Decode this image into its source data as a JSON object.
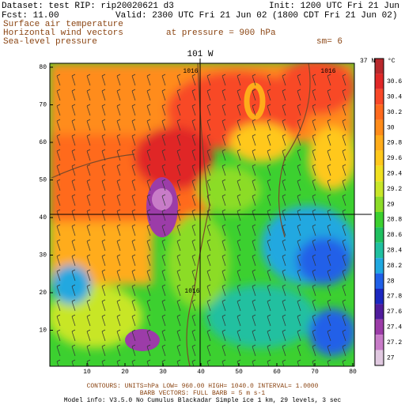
{
  "header": {
    "dataset": "Dataset: test  RIP: rip20020621 d3",
    "init": "Init: 1200 UTC Fri 21 Jun 02",
    "fcst": "Fcst:    11.00",
    "valid": "Valid: 2300 UTC Fri 21 Jun 02 (1800 CDT Fri 21 Jun 02)",
    "field1": "Surface air temperature",
    "field2": "Horizontal wind vectors",
    "field3": "Sea-level pressure",
    "pressure": "at pressure =  900 hPa",
    "smooth": "sm= 6"
  },
  "map": {
    "meridian": "101 W",
    "parallel": "37 N",
    "xticks": [
      10,
      20,
      30,
      40,
      50,
      60,
      70,
      80
    ],
    "yticks": [
      10,
      20,
      30,
      40,
      50,
      60,
      70,
      80
    ],
    "contour_labels": [
      "1016",
      "1016",
      "1016"
    ]
  },
  "colorbar": {
    "unit": "°C",
    "labels": [
      "30.6",
      "30.4",
      "30.2",
      "30",
      "29.8",
      "29.6",
      "29.4",
      "29.2",
      "29",
      "28.8",
      "28.6",
      "28.4",
      "28.2",
      "28",
      "27.8",
      "27.6",
      "27.4",
      "27.2",
      "27"
    ],
    "colors": [
      "#b8282c",
      "#e02828",
      "#f84828",
      "#ff6a1e",
      "#ff8c1a",
      "#ffac1a",
      "#ffc81c",
      "#f0e020",
      "#c8e628",
      "#8cdc28",
      "#3cd030",
      "#20c060",
      "#20c0a0",
      "#20a8e0",
      "#2060e8",
      "#1c28c0",
      "#501c9c",
      "#9c3ca8",
      "#c87cc8",
      "#e0c8e0"
    ]
  },
  "footer": {
    "contours": "CONTOURS:  UNITS=hPa   LOW=  960.00     HIGH=  1040.0     INTERVAL=    1.0000",
    "barbs": "BARB VECTORS:  FULL BARB = 5 m s-1",
    "model": "Model info: V3.5.0  No Cumulus  Blackadar  Simple ice   1 km,  29 levels,     3 sec"
  }
}
